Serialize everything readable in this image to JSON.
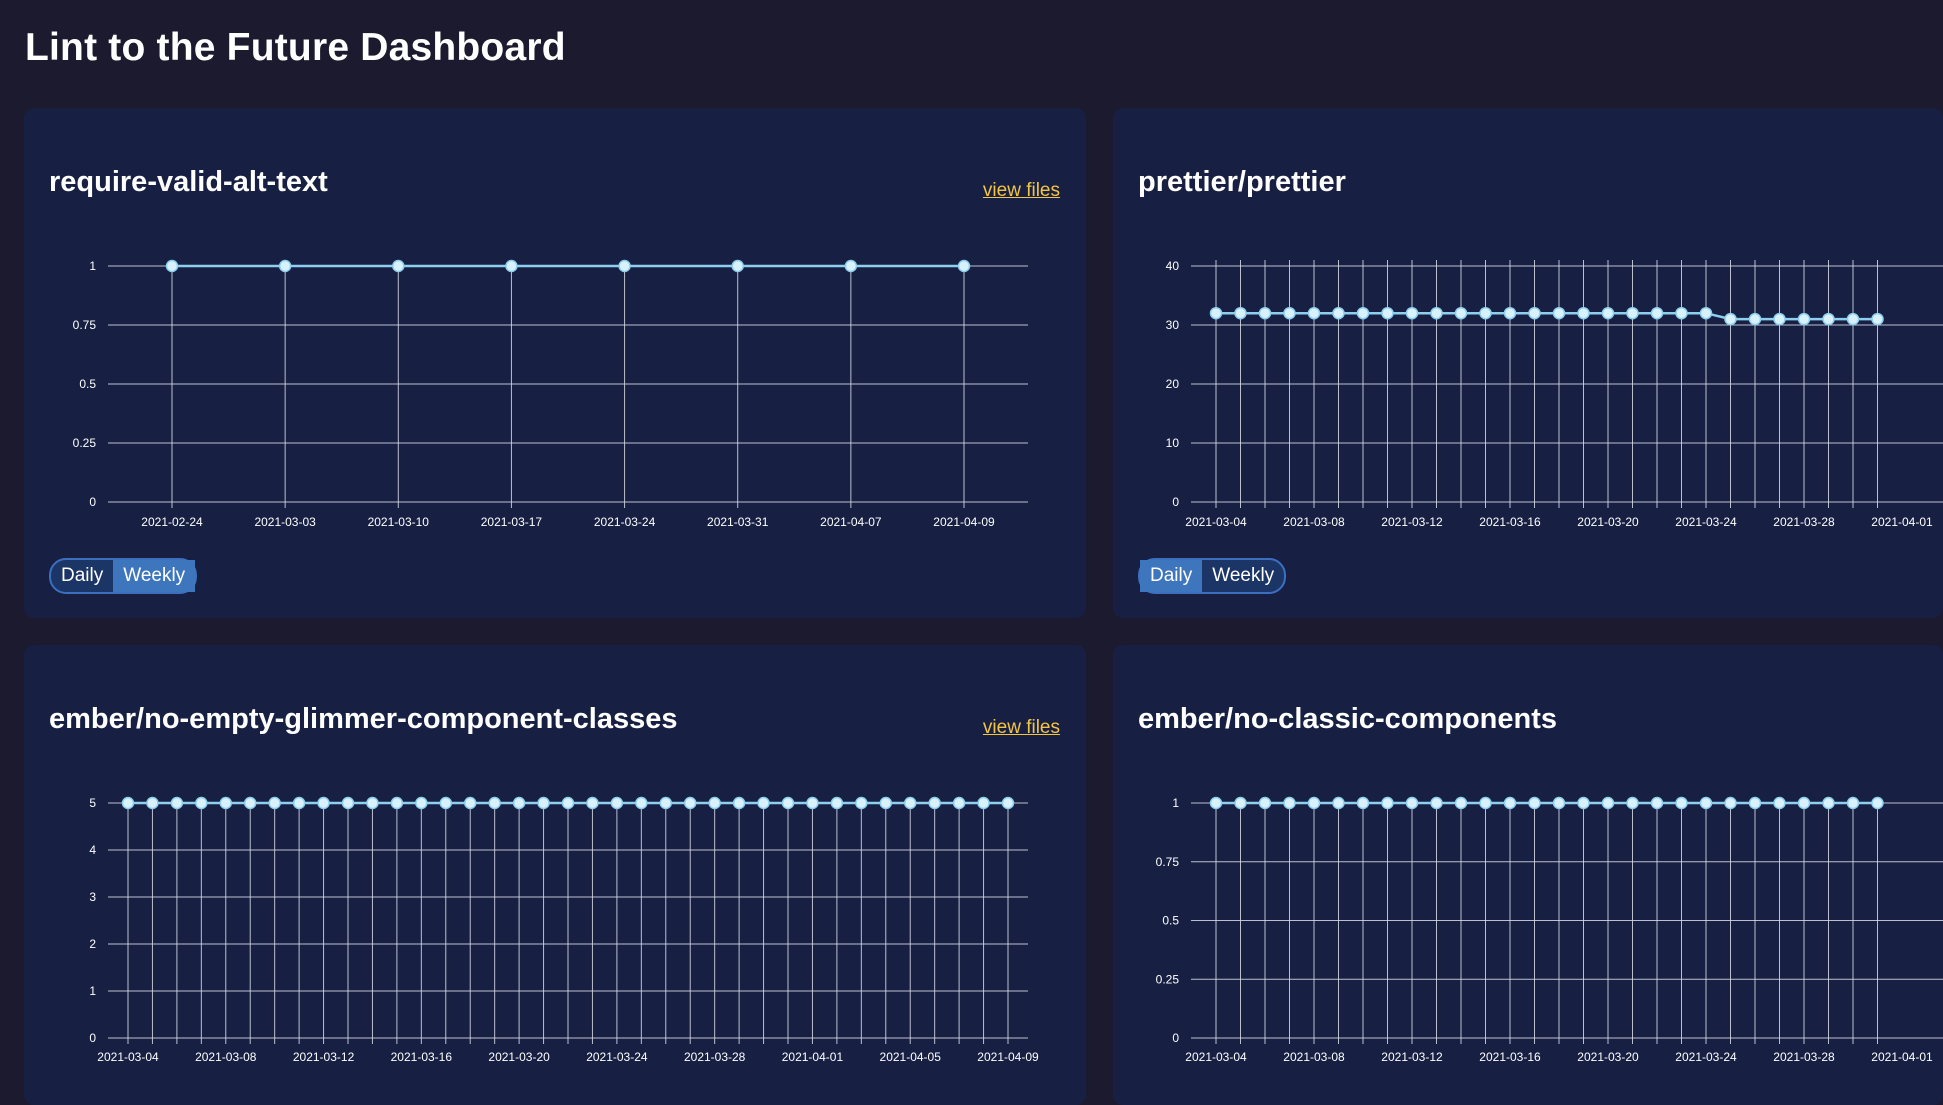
{
  "page": {
    "title": "Lint to the Future Dashboard"
  },
  "colors": {
    "page_background": "#1b1a2e",
    "card_background": "#172043",
    "line": "#8ecff0",
    "grid": "#d8dbe6",
    "link": "#f4c542",
    "toggle_active": "#3e76be"
  },
  "cards": [
    {
      "title": "require-valid-alt-text",
      "link": "view files",
      "toggle": {
        "daily_label": "Daily",
        "weekly_label": "Weekly",
        "selected": "Weekly"
      },
      "chart_data": {
        "type": "line",
        "x": [
          "2021-02-24",
          "2021-03-03",
          "2021-03-10",
          "2021-03-17",
          "2021-03-24",
          "2021-03-31",
          "2021-04-07",
          "2021-04-09"
        ],
        "series": [
          {
            "values": [
              1,
              1,
              1,
              1,
              1,
              1,
              1,
              1
            ]
          }
        ],
        "x_tick_labels": [
          "2021-02-24",
          "2021-03-03",
          "2021-03-10",
          "2021-03-17",
          "2021-03-24",
          "2021-03-31",
          "2021-04-07",
          "2021-04-09"
        ],
        "y_ticks": [
          0,
          0.25,
          0.5,
          0.75,
          1
        ],
        "y_tick_labels": [
          "0",
          "0.25",
          "0.5",
          "0.75",
          "1"
        ],
        "ylim": [
          0,
          1
        ],
        "title": "",
        "xlabel": "",
        "ylabel": "",
        "grid": true,
        "legend": "none"
      }
    },
    {
      "title": "prettier/prettier",
      "toggle": {
        "daily_label": "Daily",
        "weekly_label": "Weekly",
        "selected": "Daily"
      },
      "chart_data": {
        "type": "line",
        "x": [
          "2021-03-04",
          "2021-03-05",
          "2021-03-06",
          "2021-03-07",
          "2021-03-08",
          "2021-03-09",
          "2021-03-10",
          "2021-03-11",
          "2021-03-12",
          "2021-03-13",
          "2021-03-14",
          "2021-03-15",
          "2021-03-16",
          "2021-03-17",
          "2021-03-18",
          "2021-03-19",
          "2021-03-20",
          "2021-03-21",
          "2021-03-22",
          "2021-03-23",
          "2021-03-24",
          "2021-03-25",
          "2021-03-26",
          "2021-03-27",
          "2021-03-28",
          "2021-03-29",
          "2021-03-30",
          "2021-03-31"
        ],
        "series": [
          {
            "values": [
              32,
              32,
              32,
              32,
              32,
              32,
              32,
              32,
              32,
              32,
              32,
              32,
              32,
              32,
              32,
              32,
              32,
              32,
              32,
              32,
              32,
              31,
              31,
              31,
              31,
              31,
              31,
              31
            ]
          }
        ],
        "x_tick_labels": [
          "2021-03-04",
          "2021-03-08",
          "2021-03-12",
          "2021-03-16",
          "2021-03-20",
          "2021-03-24",
          "2021-03-28",
          "2021-04-01"
        ],
        "y_ticks": [
          0,
          10,
          20,
          30,
          40
        ],
        "y_tick_labels": [
          "0",
          "10",
          "20",
          "30",
          "40"
        ],
        "ylim": [
          0,
          40
        ],
        "title": "",
        "xlabel": "",
        "ylabel": "",
        "grid": true,
        "legend": "none"
      }
    },
    {
      "title": "ember/no-empty-glimmer-component-classes",
      "link": "view files",
      "chart_data": {
        "type": "line",
        "x": [
          "2021-03-04",
          "2021-03-05",
          "2021-03-06",
          "2021-03-07",
          "2021-03-08",
          "2021-03-09",
          "2021-03-10",
          "2021-03-11",
          "2021-03-12",
          "2021-03-13",
          "2021-03-14",
          "2021-03-15",
          "2021-03-16",
          "2021-03-17",
          "2021-03-18",
          "2021-03-19",
          "2021-03-20",
          "2021-03-21",
          "2021-03-22",
          "2021-03-23",
          "2021-03-24",
          "2021-03-25",
          "2021-03-26",
          "2021-03-27",
          "2021-03-28",
          "2021-03-29",
          "2021-03-30",
          "2021-03-31",
          "2021-04-01",
          "2021-04-02",
          "2021-04-03",
          "2021-04-04",
          "2021-04-05",
          "2021-04-06",
          "2021-04-07",
          "2021-04-08",
          "2021-04-09"
        ],
        "series": [
          {
            "values": [
              5,
              5,
              5,
              5,
              5,
              5,
              5,
              5,
              5,
              5,
              5,
              5,
              5,
              5,
              5,
              5,
              5,
              5,
              5,
              5,
              5,
              5,
              5,
              5,
              5,
              5,
              5,
              5,
              5,
              5,
              5,
              5,
              5,
              5,
              5,
              5,
              5
            ]
          }
        ],
        "x_tick_labels": [
          "2021-03-04",
          "2021-03-08",
          "2021-03-12",
          "2021-03-16",
          "2021-03-20",
          "2021-03-24",
          "2021-03-28",
          "2021-04-01",
          "2021-04-05",
          "2021-04-09"
        ],
        "y_ticks": [
          0,
          1,
          2,
          3,
          4,
          5
        ],
        "y_tick_labels": [
          "0",
          "1",
          "2",
          "3",
          "4",
          "5"
        ],
        "ylim": [
          0,
          5
        ],
        "title": "",
        "xlabel": "",
        "ylabel": "",
        "grid": true,
        "legend": "none"
      }
    },
    {
      "title": "ember/no-classic-components",
      "chart_data": {
        "type": "line",
        "x": [
          "2021-03-04",
          "2021-03-05",
          "2021-03-06",
          "2021-03-07",
          "2021-03-08",
          "2021-03-09",
          "2021-03-10",
          "2021-03-11",
          "2021-03-12",
          "2021-03-13",
          "2021-03-14",
          "2021-03-15",
          "2021-03-16",
          "2021-03-17",
          "2021-03-18",
          "2021-03-19",
          "2021-03-20",
          "2021-03-21",
          "2021-03-22",
          "2021-03-23",
          "2021-03-24",
          "2021-03-25",
          "2021-03-26",
          "2021-03-27",
          "2021-03-28",
          "2021-03-29",
          "2021-03-30",
          "2021-03-31"
        ],
        "series": [
          {
            "values": [
              1,
              1,
              1,
              1,
              1,
              1,
              1,
              1,
              1,
              1,
              1,
              1,
              1,
              1,
              1,
              1,
              1,
              1,
              1,
              1,
              1,
              1,
              1,
              1,
              1,
              1,
              1,
              1
            ]
          }
        ],
        "x_tick_labels": [
          "2021-03-04",
          "2021-03-08",
          "2021-03-12",
          "2021-03-16",
          "2021-03-20",
          "2021-03-24",
          "2021-03-28",
          "2021-04-01"
        ],
        "y_ticks": [
          0,
          0.25,
          0.5,
          0.75,
          1
        ],
        "y_tick_labels": [
          "0",
          "0.25",
          "0.5",
          "0.75",
          "1"
        ],
        "ylim": [
          0,
          1
        ],
        "title": "",
        "xlabel": "",
        "ylabel": "",
        "grid": true,
        "legend": "none"
      }
    }
  ]
}
